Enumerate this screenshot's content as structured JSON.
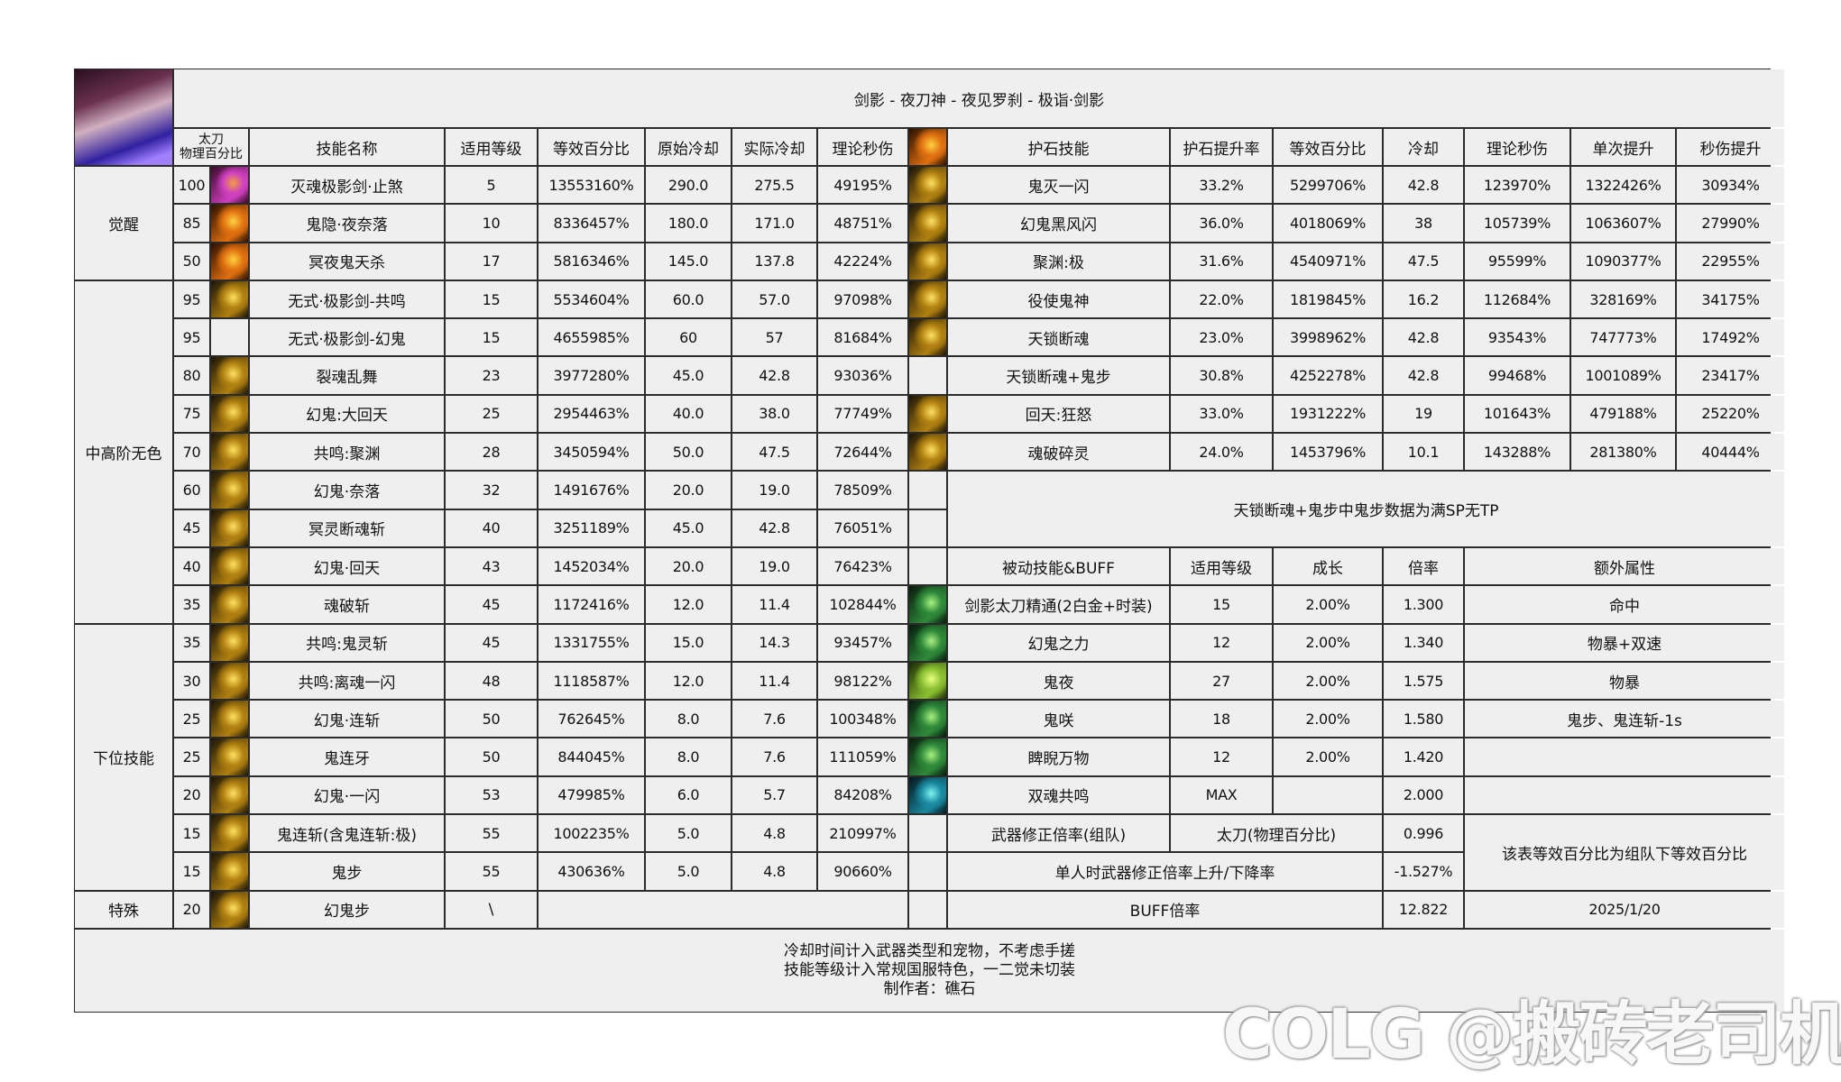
{
  "title": "剑影 - 夜刀神 - 夜见罗刹 - 极诣·剑影",
  "header": {
    "weapon": "太刀",
    "weapon_sub": "物理百分比",
    "cols": [
      "技能名称",
      "适用等级",
      "等效百分比",
      "原始冷却",
      "实际冷却",
      "理论秒伤"
    ],
    "amulet_cols": [
      "护石技能",
      "护石提升率",
      "等效百分比",
      "冷却",
      "理论秒伤",
      "单次提升",
      "秒伤提升"
    ]
  },
  "categories": [
    {
      "label": "觉醒",
      "rows": 3
    },
    {
      "label": "中高阶无色",
      "rows": 9
    },
    {
      "label": "下位技能",
      "rows": 7
    },
    {
      "label": "特殊",
      "rows": 1
    }
  ],
  "skills": [
    {
      "lv": "100",
      "icon": "magenta",
      "name": "灭魂极影剑·止煞",
      "req": "5",
      "pct": "13553160%",
      "cd": "290.0",
      "acd": "275.5",
      "dps": "49195%"
    },
    {
      "lv": "85",
      "icon": "orange",
      "name": "鬼隐·夜奈落",
      "req": "10",
      "pct": "8336457%",
      "cd": "180.0",
      "acd": "171.0",
      "dps": "48751%"
    },
    {
      "lv": "50",
      "icon": "orange",
      "name": "冥夜鬼天杀",
      "req": "17",
      "pct": "5816346%",
      "cd": "145.0",
      "acd": "137.8",
      "dps": "42224%"
    },
    {
      "lv": "95",
      "icon": "gold",
      "name": "无式·极影剑-共鸣",
      "req": "15",
      "pct": "5534604%",
      "cd": "60.0",
      "acd": "57.0",
      "dps": "97098%"
    },
    {
      "lv": "95",
      "icon": "",
      "name": "无式·极影剑-幻鬼",
      "req": "15",
      "pct": "4655985%",
      "cd": "60",
      "acd": "57",
      "dps": "81684%"
    },
    {
      "lv": "80",
      "icon": "gold",
      "name": "裂魂乱舞",
      "req": "23",
      "pct": "3977280%",
      "cd": "45.0",
      "acd": "42.8",
      "dps": "93036%"
    },
    {
      "lv": "75",
      "icon": "gold",
      "name": "幻鬼:大回天",
      "req": "25",
      "pct": "2954463%",
      "cd": "40.0",
      "acd": "38.0",
      "dps": "77749%"
    },
    {
      "lv": "70",
      "icon": "gold",
      "name": "共鸣:聚渊",
      "req": "28",
      "pct": "3450594%",
      "cd": "50.0",
      "acd": "47.5",
      "dps": "72644%"
    },
    {
      "lv": "60",
      "icon": "gold",
      "name": "幻鬼·奈落",
      "req": "32",
      "pct": "1491676%",
      "cd": "20.0",
      "acd": "19.0",
      "dps": "78509%"
    },
    {
      "lv": "45",
      "icon": "gold",
      "name": "冥灵断魂斩",
      "req": "40",
      "pct": "3251189%",
      "cd": "45.0",
      "acd": "42.8",
      "dps": "76051%"
    },
    {
      "lv": "40",
      "icon": "gold",
      "name": "幻鬼·回天",
      "req": "43",
      "pct": "1452034%",
      "cd": "20.0",
      "acd": "19.0",
      "dps": "76423%"
    },
    {
      "lv": "35",
      "icon": "gold",
      "name": "魂破斩",
      "req": "45",
      "pct": "1172416%",
      "cd": "12.0",
      "acd": "11.4",
      "dps": "102844%"
    },
    {
      "lv": "35",
      "icon": "gold",
      "name": "共鸣:鬼灵斩",
      "req": "45",
      "pct": "1331755%",
      "cd": "15.0",
      "acd": "14.3",
      "dps": "93457%"
    },
    {
      "lv": "30",
      "icon": "gold",
      "name": "共鸣:离魂一闪",
      "req": "48",
      "pct": "1118587%",
      "cd": "12.0",
      "acd": "11.4",
      "dps": "98122%"
    },
    {
      "lv": "25",
      "icon": "gold",
      "name": "幻鬼·连斩",
      "req": "50",
      "pct": "762645%",
      "cd": "8.0",
      "acd": "7.6",
      "dps": "100348%"
    },
    {
      "lv": "25",
      "icon": "gold",
      "name": "鬼连牙",
      "req": "50",
      "pct": "844045%",
      "cd": "8.0",
      "acd": "7.6",
      "dps": "111059%"
    },
    {
      "lv": "20",
      "icon": "gold",
      "name": "幻鬼·一闪",
      "req": "53",
      "pct": "479985%",
      "cd": "6.0",
      "acd": "5.7",
      "dps": "84208%"
    },
    {
      "lv": "15",
      "icon": "gold",
      "name": "鬼连斩(含鬼连斩:极)",
      "req": "55",
      "pct": "1002235%",
      "cd": "5.0",
      "acd": "4.8",
      "dps": "210997%"
    },
    {
      "lv": "15",
      "icon": "gold",
      "name": "鬼步",
      "req": "55",
      "pct": "430636%",
      "cd": "5.0",
      "acd": "4.8",
      "dps": "90660%"
    }
  ],
  "special": {
    "lv": "20",
    "icon": "gold",
    "name": "幻鬼步",
    "req": "\\"
  },
  "amulets": [
    {
      "icon": "gold",
      "name": "鬼灭一闪",
      "rate": "33.2%",
      "pct": "5299706%",
      "cd": "42.8",
      "dps": "123970%",
      "single": "1322426%",
      "gain": "30934%"
    },
    {
      "icon": "gold",
      "name": "幻鬼黑风闪",
      "rate": "36.0%",
      "pct": "4018069%",
      "cd": "38",
      "dps": "105739%",
      "single": "1063607%",
      "gain": "27990%"
    },
    {
      "icon": "gold",
      "name": "聚渊:极",
      "rate": "31.6%",
      "pct": "4540971%",
      "cd": "47.5",
      "dps": "95599%",
      "single": "1090377%",
      "gain": "22955%"
    },
    {
      "icon": "gold",
      "name": "役使鬼神",
      "rate": "22.0%",
      "pct": "1819845%",
      "cd": "16.2",
      "dps": "112684%",
      "single": "328169%",
      "gain": "34175%"
    },
    {
      "icon": "gold",
      "name": "天锁断魂",
      "rate": "23.0%",
      "pct": "3998962%",
      "cd": "42.8",
      "dps": "93543%",
      "single": "747773%",
      "gain": "17492%"
    },
    {
      "icon": "",
      "name": "天锁断魂+鬼步",
      "rate": "30.8%",
      "pct": "4252278%",
      "cd": "42.8",
      "dps": "99468%",
      "single": "1001089%",
      "gain": "23417%"
    },
    {
      "icon": "gold",
      "name": "回天:狂怒",
      "rate": "33.0%",
      "pct": "1931222%",
      "cd": "19",
      "dps": "101643%",
      "single": "479188%",
      "gain": "25220%"
    },
    {
      "icon": "gold",
      "name": "魂破碎灵",
      "rate": "24.0%",
      "pct": "1453796%",
      "cd": "10.1",
      "dps": "143288%",
      "single": "281380%",
      "gain": "40444%"
    }
  ],
  "amulet_note": "天锁断魂+鬼步中鬼步数据为满SP无TP",
  "passive_header": [
    "被动技能&BUFF",
    "适用等级",
    "成长",
    "倍率",
    "额外属性"
  ],
  "passives": [
    {
      "icon": "green",
      "name": "剑影太刀精通(2白金+时装)",
      "req": "15",
      "growth": "2.00%",
      "mult": "1.300",
      "extra": "命中"
    },
    {
      "icon": "green",
      "name": "幻鬼之力",
      "req": "12",
      "growth": "2.00%",
      "mult": "1.340",
      "extra": "物暴+双速"
    },
    {
      "icon": "lime",
      "name": "鬼夜",
      "req": "27",
      "growth": "2.00%",
      "mult": "1.575",
      "extra": "物暴"
    },
    {
      "icon": "green",
      "name": "鬼咲",
      "req": "18",
      "growth": "2.00%",
      "mult": "1.580",
      "extra": "鬼步、鬼连斩-1s"
    },
    {
      "icon": "green",
      "name": "睥睨万物",
      "req": "12",
      "growth": "2.00%",
      "mult": "1.420",
      "extra": ""
    },
    {
      "icon": "teal",
      "name": "双魂共鸣",
      "req": "MAX",
      "growth": "",
      "mult": "2.000",
      "extra": ""
    }
  ],
  "weapon": {
    "label": "武器修正倍率(组队)",
    "type": "太刀(物理百分比)",
    "value": "0.996",
    "solo_label": "单人时武器修正倍率上升/下降率",
    "solo_value": "-1.527%",
    "note": "该表等效百分比为组队下等效百分比"
  },
  "buff": {
    "label": "BUFF倍率",
    "value": "12.822",
    "date": "2025/1/20"
  },
  "footer": [
    "冷却时间计入武器类型和宠物，不考虑手搓",
    "技能等级计入常规国服特色，一二觉未切装",
    "制作者：礁石"
  ],
  "icon_colors": {
    "magenta": [
      "#3a0a2a",
      "#d040c0",
      "#f0a040"
    ],
    "orange": [
      "#2a1000",
      "#e07010",
      "#ffd040"
    ],
    "gold": [
      "#1a1408",
      "#b08010",
      "#ffe060"
    ],
    "green": [
      "#061a0c",
      "#2f8a3a",
      "#a8f080"
    ],
    "lime": [
      "#1a2a06",
      "#8ac030",
      "#eaff80"
    ],
    "teal": [
      "#04161c",
      "#1a8aa0",
      "#80f0f0"
    ]
  },
  "watermark": "COLG @搬砖老司机"
}
